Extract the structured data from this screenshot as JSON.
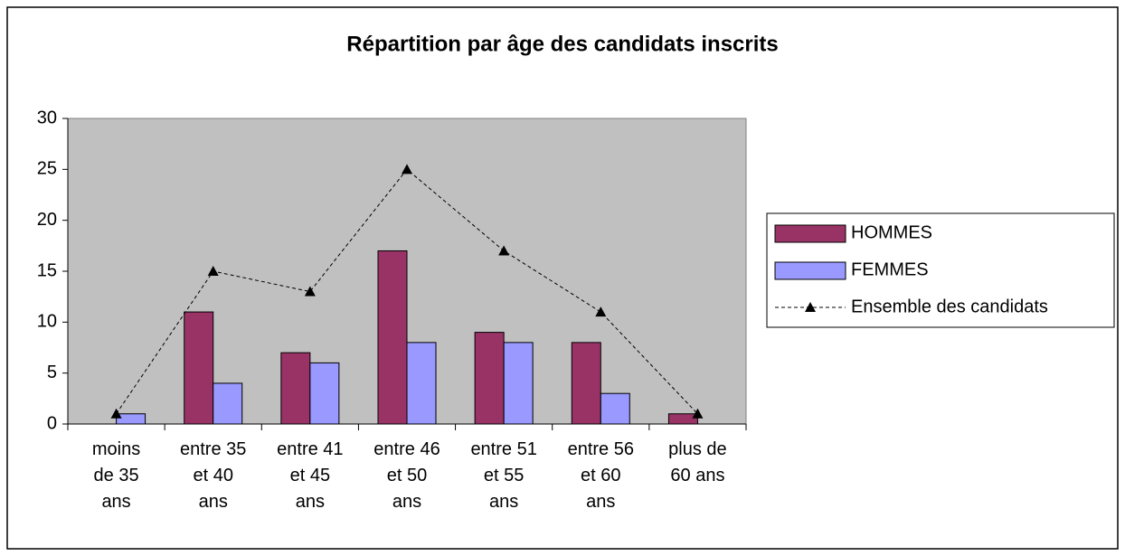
{
  "chart_data": {
    "type": "bar",
    "title": "Répartition par âge des candidats inscrits",
    "categories": [
      "moins de 35 ans",
      "entre 35 et 40 ans",
      "entre 41 et 45 ans",
      "entre 46 et 50 ans",
      "entre 51 et 55 ans",
      "entre 56 et 60 ans",
      "plus de 60 ans"
    ],
    "series": [
      {
        "name": "HOMMES",
        "type": "bar",
        "color": "#993366",
        "values": [
          0,
          11,
          7,
          17,
          9,
          8,
          1
        ]
      },
      {
        "name": "FEMMES",
        "type": "bar",
        "color": "#9999ff",
        "values": [
          1,
          4,
          6,
          8,
          8,
          3,
          0
        ]
      },
      {
        "name": "Ensemble des candidats",
        "type": "line",
        "color": "#000000",
        "values": [
          1,
          15,
          13,
          25,
          17,
          11,
          1
        ]
      }
    ],
    "ylim": [
      0,
      30
    ],
    "yticks": [
      0,
      5,
      10,
      15,
      20,
      25,
      30
    ],
    "grid": false,
    "legend": "right",
    "plot_background": "#c0c0c0"
  }
}
